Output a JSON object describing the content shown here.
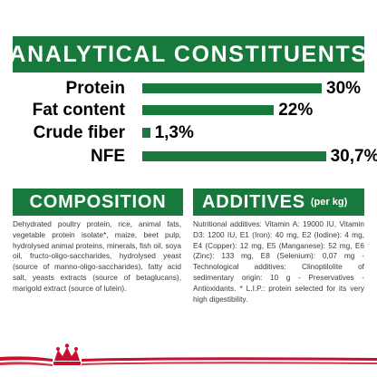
{
  "analytics": {
    "title": "ANALYTICAL CONSTITUENTS",
    "rows": [
      {
        "label": "Protein",
        "value": "30%",
        "percent": 30
      },
      {
        "label": "Fat content",
        "value": "22%",
        "percent": 22
      },
      {
        "label": "Crude fiber",
        "value": "1,3%",
        "percent": 1.3
      },
      {
        "label": "NFE",
        "value": "30,7%",
        "percent": 30.7
      }
    ]
  },
  "composition": {
    "title": "COMPOSITION",
    "text": "Dehydrated poultry protein, rice, animal fats, vegetable protein isolate*, maize, beet pulp, hydrolysed animal proteins, minerals, fish oil, soya oil, fructo-oligo-saccharides, hydrolysed yeast (source of manno-oligo-saccharides), fatty acid salt, yeasts extracts (source of betaglucans), marigold extract (source of lutein)."
  },
  "additives": {
    "title": "ADDITIVES",
    "subtitle": "(per kg)",
    "text": "Nutritional additives: Vitamin A: 19000 IU, Vitamin D3: 1200 IU, E1 (Iron): 40 mg, E2 (Iodine): 4 mg, E4 (Copper): 12 mg, E5 (Manganese): 52 mg, E6 (Zinc): 133 mg, E8 (Selenium): 0,07 mg - Technological additives: Clinoptilolite of sedimentary origin: 10 g - Preservatives - Antioxidants. * L.I.P.: protein selected for its very high digestibility."
  },
  "colors": {
    "brand_green": "#17793b",
    "brand_red": "#c8102e"
  },
  "icons": {
    "footer": "royal-canin-crown-logo"
  }
}
